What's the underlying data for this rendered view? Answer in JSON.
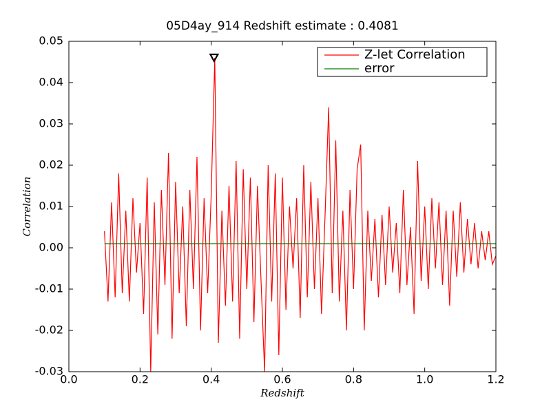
{
  "chart_data": {
    "type": "line",
    "title": "05D4ay_914 Redshift estimate : 0.4081",
    "xlabel": "Redshift",
    "ylabel": "Correlation",
    "xlim": [
      0,
      1.2
    ],
    "ylim": [
      -0.03,
      0.05
    ],
    "xticks": [
      {
        "value": 0,
        "label": "0.0"
      },
      0.2,
      0.4,
      0.6,
      0.8,
      {
        "value": 1,
        "label": "1.0"
      },
      1.2
    ],
    "yticks": [
      -0.03,
      -0.02,
      -0.01,
      {
        "value": 0,
        "label": "0.00"
      },
      0.01,
      0.02,
      0.03,
      0.04,
      0.05
    ],
    "grid": false,
    "legend": "upper right",
    "series": [
      {
        "name": "Z-let Correlation",
        "color": "#ff0000",
        "x": [
          0.1,
          0.11,
          0.12,
          0.13,
          0.14,
          0.15,
          0.16,
          0.17,
          0.18,
          0.19,
          0.2,
          0.21,
          0.22,
          0.23,
          0.24,
          0.25,
          0.26,
          0.27,
          0.28,
          0.29,
          0.3,
          0.31,
          0.32,
          0.33,
          0.34,
          0.35,
          0.36,
          0.37,
          0.38,
          0.39,
          0.4,
          0.41,
          0.42,
          0.43,
          0.44,
          0.45,
          0.46,
          0.47,
          0.48,
          0.49,
          0.5,
          0.51,
          0.52,
          0.53,
          0.54,
          0.55,
          0.56,
          0.57,
          0.58,
          0.59,
          0.6,
          0.61,
          0.62,
          0.63,
          0.64,
          0.65,
          0.66,
          0.67,
          0.68,
          0.69,
          0.7,
          0.71,
          0.72,
          0.73,
          0.74,
          0.75,
          0.76,
          0.77,
          0.78,
          0.79,
          0.8,
          0.81,
          0.82,
          0.83,
          0.84,
          0.85,
          0.86,
          0.87,
          0.88,
          0.89,
          0.9,
          0.91,
          0.92,
          0.93,
          0.94,
          0.95,
          0.96,
          0.97,
          0.98,
          0.99,
          1.0,
          1.01,
          1.02,
          1.03,
          1.04,
          1.05,
          1.06,
          1.07,
          1.08,
          1.09,
          1.1,
          1.11,
          1.12,
          1.13,
          1.14,
          1.15,
          1.16,
          1.17,
          1.18,
          1.19,
          1.2
        ],
        "values": [
          0.004,
          -0.013,
          0.011,
          -0.012,
          0.018,
          -0.011,
          0.009,
          -0.013,
          0.012,
          -0.006,
          0.006,
          -0.016,
          0.017,
          -0.03,
          0.011,
          -0.021,
          0.014,
          -0.009,
          0.023,
          -0.022,
          0.016,
          -0.011,
          0.01,
          -0.019,
          0.014,
          -0.01,
          0.022,
          -0.02,
          0.012,
          -0.011,
          0.013,
          0.046,
          -0.023,
          0.009,
          -0.014,
          0.015,
          -0.013,
          0.021,
          -0.022,
          0.019,
          -0.01,
          0.017,
          -0.018,
          0.015,
          -0.008,
          -0.03,
          0.02,
          -0.013,
          0.018,
          -0.026,
          0.017,
          -0.015,
          0.01,
          -0.005,
          0.012,
          -0.017,
          0.02,
          -0.012,
          0.016,
          -0.01,
          0.012,
          -0.016,
          0.008,
          0.034,
          -0.011,
          0.026,
          -0.013,
          0.009,
          -0.02,
          0.014,
          -0.01,
          0.019,
          0.025,
          -0.02,
          0.009,
          -0.008,
          0.007,
          -0.012,
          0.008,
          -0.009,
          0.01,
          -0.006,
          0.006,
          -0.011,
          0.014,
          -0.009,
          0.005,
          -0.016,
          0.021,
          -0.008,
          0.01,
          -0.01,
          0.012,
          -0.005,
          0.011,
          -0.009,
          0.009,
          -0.014,
          0.009,
          -0.007,
          0.011,
          -0.006,
          0.007,
          -0.004,
          0.006,
          -0.005,
          0.004,
          -0.003,
          0.004,
          -0.004,
          -0.002
        ]
      },
      {
        "name": "error",
        "color": "#008000",
        "x": [
          0.1,
          1.2
        ],
        "values": [
          0.001,
          0.001
        ]
      }
    ],
    "marker": {
      "x": 0.4081,
      "y": 0.046
    }
  }
}
